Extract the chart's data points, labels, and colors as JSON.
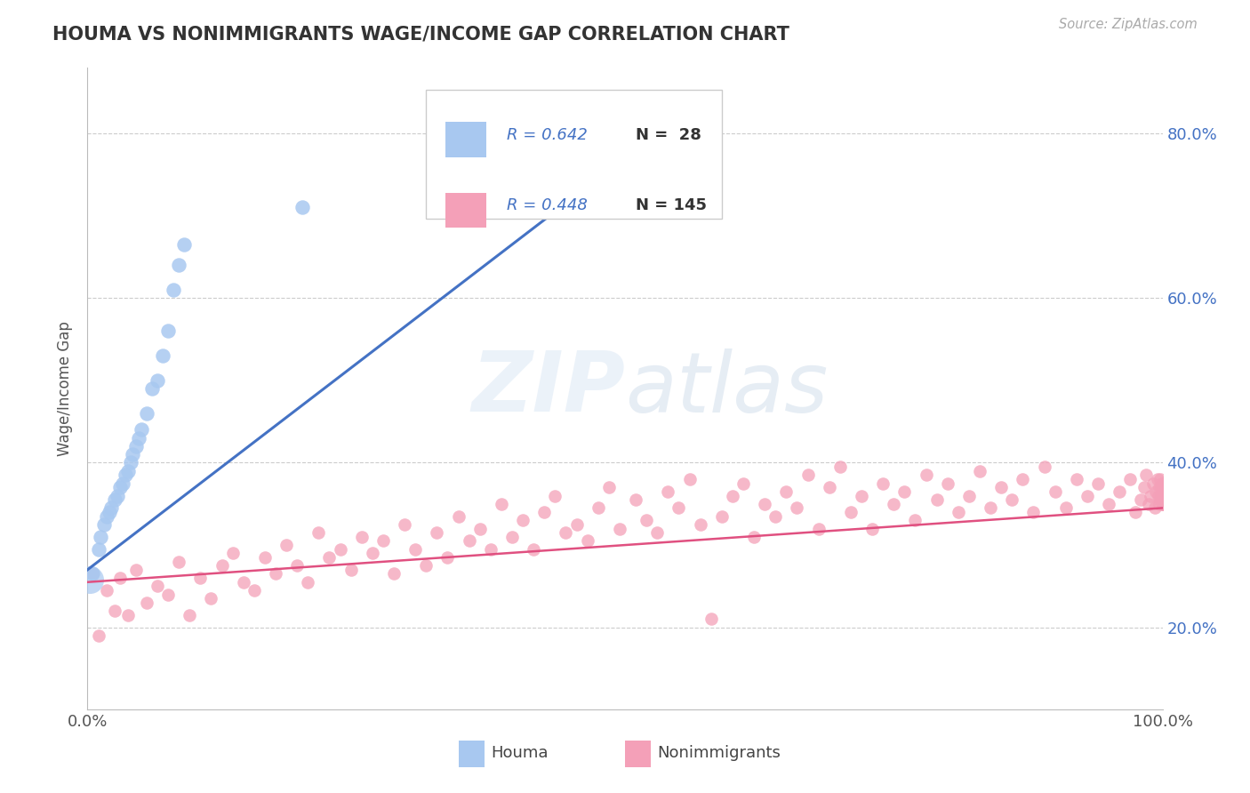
{
  "title": "HOUMA VS NONIMMIGRANTS WAGE/INCOME GAP CORRELATION CHART",
  "source_text": "Source: ZipAtlas.com",
  "ylabel": "Wage/Income Gap",
  "ylim": [
    0.1,
    0.88
  ],
  "xlim": [
    0.0,
    1.0
  ],
  "houma_R": 0.642,
  "houma_N": 28,
  "nonimm_R": 0.448,
  "nonimm_N": 145,
  "houma_color": "#a8c8f0",
  "houma_line_color": "#4472c4",
  "nonimm_color": "#f4a0b8",
  "nonimm_line_color": "#e05080",
  "legend_R_color": "#4472c4",
  "background_color": "#ffffff",
  "grid_color": "#cccccc",
  "ytick_vals": [
    0.2,
    0.4,
    0.6,
    0.8
  ],
  "ytick_labels": [
    "20.0%",
    "40.0%",
    "60.0%",
    "80.0%"
  ],
  "houma_x": [
    0.005,
    0.01,
    0.012,
    0.015,
    0.018,
    0.02,
    0.022,
    0.025,
    0.028,
    0.03,
    0.033,
    0.035,
    0.038,
    0.04,
    0.042,
    0.045,
    0.048,
    0.05,
    0.055,
    0.06,
    0.065,
    0.07,
    0.075,
    0.08,
    0.085,
    0.09,
    0.2,
    0.42
  ],
  "houma_y": [
    0.265,
    0.295,
    0.31,
    0.325,
    0.335,
    0.34,
    0.345,
    0.355,
    0.36,
    0.37,
    0.375,
    0.385,
    0.39,
    0.4,
    0.41,
    0.42,
    0.43,
    0.44,
    0.46,
    0.49,
    0.5,
    0.53,
    0.56,
    0.61,
    0.64,
    0.665,
    0.71,
    0.74
  ],
  "nonimm_x": [
    0.005,
    0.01,
    0.018,
    0.025,
    0.03,
    0.038,
    0.045,
    0.055,
    0.065,
    0.075,
    0.085,
    0.095,
    0.105,
    0.115,
    0.125,
    0.135,
    0.145,
    0.155,
    0.165,
    0.175,
    0.185,
    0.195,
    0.205,
    0.215,
    0.225,
    0.235,
    0.245,
    0.255,
    0.265,
    0.275,
    0.285,
    0.295,
    0.305,
    0.315,
    0.325,
    0.335,
    0.345,
    0.355,
    0.365,
    0.375,
    0.385,
    0.395,
    0.405,
    0.415,
    0.425,
    0.435,
    0.445,
    0.455,
    0.465,
    0.475,
    0.485,
    0.495,
    0.51,
    0.52,
    0.53,
    0.54,
    0.55,
    0.56,
    0.57,
    0.58,
    0.59,
    0.6,
    0.61,
    0.62,
    0.63,
    0.64,
    0.65,
    0.66,
    0.67,
    0.68,
    0.69,
    0.7,
    0.71,
    0.72,
    0.73,
    0.74,
    0.75,
    0.76,
    0.77,
    0.78,
    0.79,
    0.8,
    0.81,
    0.82,
    0.83,
    0.84,
    0.85,
    0.86,
    0.87,
    0.88,
    0.89,
    0.9,
    0.91,
    0.92,
    0.93,
    0.94,
    0.95,
    0.96,
    0.97,
    0.975,
    0.98,
    0.983,
    0.985,
    0.987,
    0.989,
    0.991,
    0.993,
    0.994,
    0.995,
    0.996,
    0.997,
    0.997,
    0.998,
    0.998,
    0.999,
    0.999,
    0.999,
    1.0,
    1.0,
    1.0,
    1.0,
    1.0,
    1.0,
    1.0,
    1.0,
    1.0,
    1.0,
    1.0,
    1.0,
    1.0,
    1.0,
    1.0,
    1.0,
    1.0,
    1.0,
    1.0,
    1.0,
    1.0,
    1.0,
    1.0,
    1.0,
    1.0,
    1.0,
    1.0,
    1.0
  ],
  "nonimm_y": [
    0.265,
    0.19,
    0.245,
    0.22,
    0.26,
    0.215,
    0.27,
    0.23,
    0.25,
    0.24,
    0.28,
    0.215,
    0.26,
    0.235,
    0.275,
    0.29,
    0.255,
    0.245,
    0.285,
    0.265,
    0.3,
    0.275,
    0.255,
    0.315,
    0.285,
    0.295,
    0.27,
    0.31,
    0.29,
    0.305,
    0.265,
    0.325,
    0.295,
    0.275,
    0.315,
    0.285,
    0.335,
    0.305,
    0.32,
    0.295,
    0.35,
    0.31,
    0.33,
    0.295,
    0.34,
    0.36,
    0.315,
    0.325,
    0.305,
    0.345,
    0.37,
    0.32,
    0.355,
    0.33,
    0.315,
    0.365,
    0.345,
    0.38,
    0.325,
    0.21,
    0.335,
    0.36,
    0.375,
    0.31,
    0.35,
    0.335,
    0.365,
    0.345,
    0.385,
    0.32,
    0.37,
    0.395,
    0.34,
    0.36,
    0.32,
    0.375,
    0.35,
    0.365,
    0.33,
    0.385,
    0.355,
    0.375,
    0.34,
    0.36,
    0.39,
    0.345,
    0.37,
    0.355,
    0.38,
    0.34,
    0.395,
    0.365,
    0.345,
    0.38,
    0.36,
    0.375,
    0.35,
    0.365,
    0.38,
    0.34,
    0.355,
    0.37,
    0.385,
    0.35,
    0.36,
    0.375,
    0.345,
    0.365,
    0.38,
    0.36,
    0.35,
    0.37,
    0.355,
    0.38,
    0.36,
    0.37,
    0.355,
    0.375,
    0.36,
    0.37,
    0.35,
    0.365,
    0.375,
    0.36,
    0.37,
    0.355,
    0.375,
    0.36,
    0.35,
    0.365,
    0.37,
    0.355,
    0.375,
    0.36,
    0.37,
    0.35,
    0.365,
    0.375,
    0.36,
    0.355,
    0.37,
    0.36,
    0.35,
    0.365,
    0.375
  ]
}
